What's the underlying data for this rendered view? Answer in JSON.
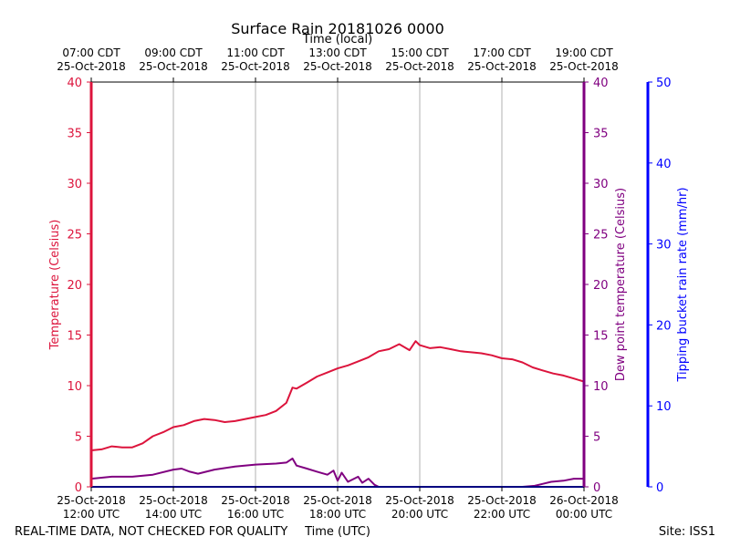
{
  "chart_data": {
    "type": "line",
    "title": "Surface Rain 20181026 0000",
    "top_axis_title": "Time (local)",
    "xlabel": "Time (UTC)",
    "ylabel_left": "Temperature (Celsius)",
    "ylabel_right": "Dew point temperature (Celsius)",
    "ylabel_far_right": "Tipping bucket rain rate (mm/hr)",
    "footer_left": "REAL-TIME DATA, NOT CHECKED FOR QUALITY",
    "footer_right": "Site: ISS1",
    "xlim_hours_utc": [
      12,
      24
    ],
    "ylim_temperature": [
      0,
      40
    ],
    "ylim_dewpoint": [
      0,
      40
    ],
    "ylim_rain_rate": [
      0,
      50
    ],
    "temperature_ticks": [
      "0",
      "5",
      "10",
      "15",
      "20",
      "25",
      "30",
      "35",
      "40"
    ],
    "rain_ticks": [
      "0",
      "10",
      "20",
      "30",
      "40",
      "50"
    ],
    "x_ticks_utc": [
      {
        "hour": 12,
        "date": "25-Oct-2018",
        "time": "12:00 UTC"
      },
      {
        "hour": 14,
        "date": "25-Oct-2018",
        "time": "14:00 UTC"
      },
      {
        "hour": 16,
        "date": "25-Oct-2018",
        "time": "16:00 UTC"
      },
      {
        "hour": 18,
        "date": "25-Oct-2018",
        "time": "18:00 UTC"
      },
      {
        "hour": 20,
        "date": "25-Oct-2018",
        "time": "20:00 UTC"
      },
      {
        "hour": 22,
        "date": "25-Oct-2018",
        "time": "22:00 UTC"
      },
      {
        "hour": 24,
        "date": "26-Oct-2018",
        "time": "00:00 UTC"
      }
    ],
    "x_ticks_local": [
      {
        "hour": 12,
        "time": "07:00 CDT",
        "date": "25-Oct-2018"
      },
      {
        "hour": 14,
        "time": "09:00 CDT",
        "date": "25-Oct-2018"
      },
      {
        "hour": 16,
        "time": "11:00 CDT",
        "date": "25-Oct-2018"
      },
      {
        "hour": 18,
        "time": "13:00 CDT",
        "date": "25-Oct-2018"
      },
      {
        "hour": 20,
        "time": "15:00 CDT",
        "date": "25-Oct-2018"
      },
      {
        "hour": 22,
        "time": "17:00 CDT",
        "date": "25-Oct-2018"
      },
      {
        "hour": 24,
        "time": "19:00 CDT",
        "date": "25-Oct-2018"
      }
    ],
    "grid": "vertical",
    "colors": {
      "temperature": "#dc143c",
      "dewpoint": "#800080",
      "rain": "#0000ff",
      "grid": "#b0b0b0",
      "text": "#000000"
    },
    "series": [
      {
        "name": "Temperature",
        "axis": "left",
        "color": "#dc143c",
        "x": [
          12.0,
          12.25,
          12.5,
          12.75,
          13.0,
          13.25,
          13.5,
          13.75,
          14.0,
          14.25,
          14.5,
          14.75,
          15.0,
          15.25,
          15.5,
          15.75,
          16.0,
          16.25,
          16.5,
          16.75,
          16.9,
          17.0,
          17.25,
          17.5,
          17.75,
          18.0,
          18.25,
          18.5,
          18.75,
          19.0,
          19.25,
          19.5,
          19.75,
          19.9,
          20.0,
          20.25,
          20.5,
          20.75,
          21.0,
          21.25,
          21.5,
          21.75,
          22.0,
          22.25,
          22.5,
          22.75,
          23.0,
          23.25,
          23.5,
          23.75,
          24.0
        ],
        "values": [
          3.6,
          3.7,
          4.0,
          3.9,
          3.9,
          4.3,
          5.0,
          5.4,
          5.9,
          6.1,
          6.5,
          6.7,
          6.6,
          6.4,
          6.5,
          6.7,
          6.9,
          7.1,
          7.5,
          8.3,
          9.8,
          9.7,
          10.3,
          10.9,
          11.3,
          11.7,
          12.0,
          12.4,
          12.8,
          13.4,
          13.6,
          14.1,
          13.5,
          14.4,
          14.0,
          13.7,
          13.8,
          13.6,
          13.4,
          13.3,
          13.2,
          13.0,
          12.7,
          12.6,
          12.3,
          11.8,
          11.5,
          11.2,
          11.0,
          10.7,
          10.4
        ]
      },
      {
        "name": "Dew point",
        "axis": "right",
        "color": "#800080",
        "x": [
          12.0,
          12.5,
          13.0,
          13.5,
          14.0,
          14.2,
          14.4,
          14.6,
          15.0,
          15.5,
          16.0,
          16.5,
          16.75,
          16.9,
          17.0,
          17.25,
          17.5,
          17.75,
          17.9,
          18.0,
          18.1,
          18.25,
          18.5,
          18.6,
          18.75,
          18.9,
          19.0,
          21.0,
          22.5,
          22.8,
          23.0,
          23.2,
          23.5,
          23.75,
          24.0
        ],
        "values": [
          0.8,
          1.0,
          1.0,
          1.2,
          1.7,
          1.8,
          1.5,
          1.3,
          1.7,
          2.0,
          2.2,
          2.3,
          2.4,
          2.8,
          2.1,
          1.8,
          1.5,
          1.2,
          1.6,
          0.6,
          1.4,
          0.5,
          1.0,
          0.4,
          0.8,
          0.2,
          0.0,
          0.0,
          0.0,
          0.1,
          0.3,
          0.5,
          0.6,
          0.8,
          0.8
        ]
      },
      {
        "name": "Rain rate",
        "axis": "far-right",
        "color": "#0000ff",
        "x": [
          12.0,
          24.0
        ],
        "values": [
          0,
          0
        ]
      }
    ]
  }
}
